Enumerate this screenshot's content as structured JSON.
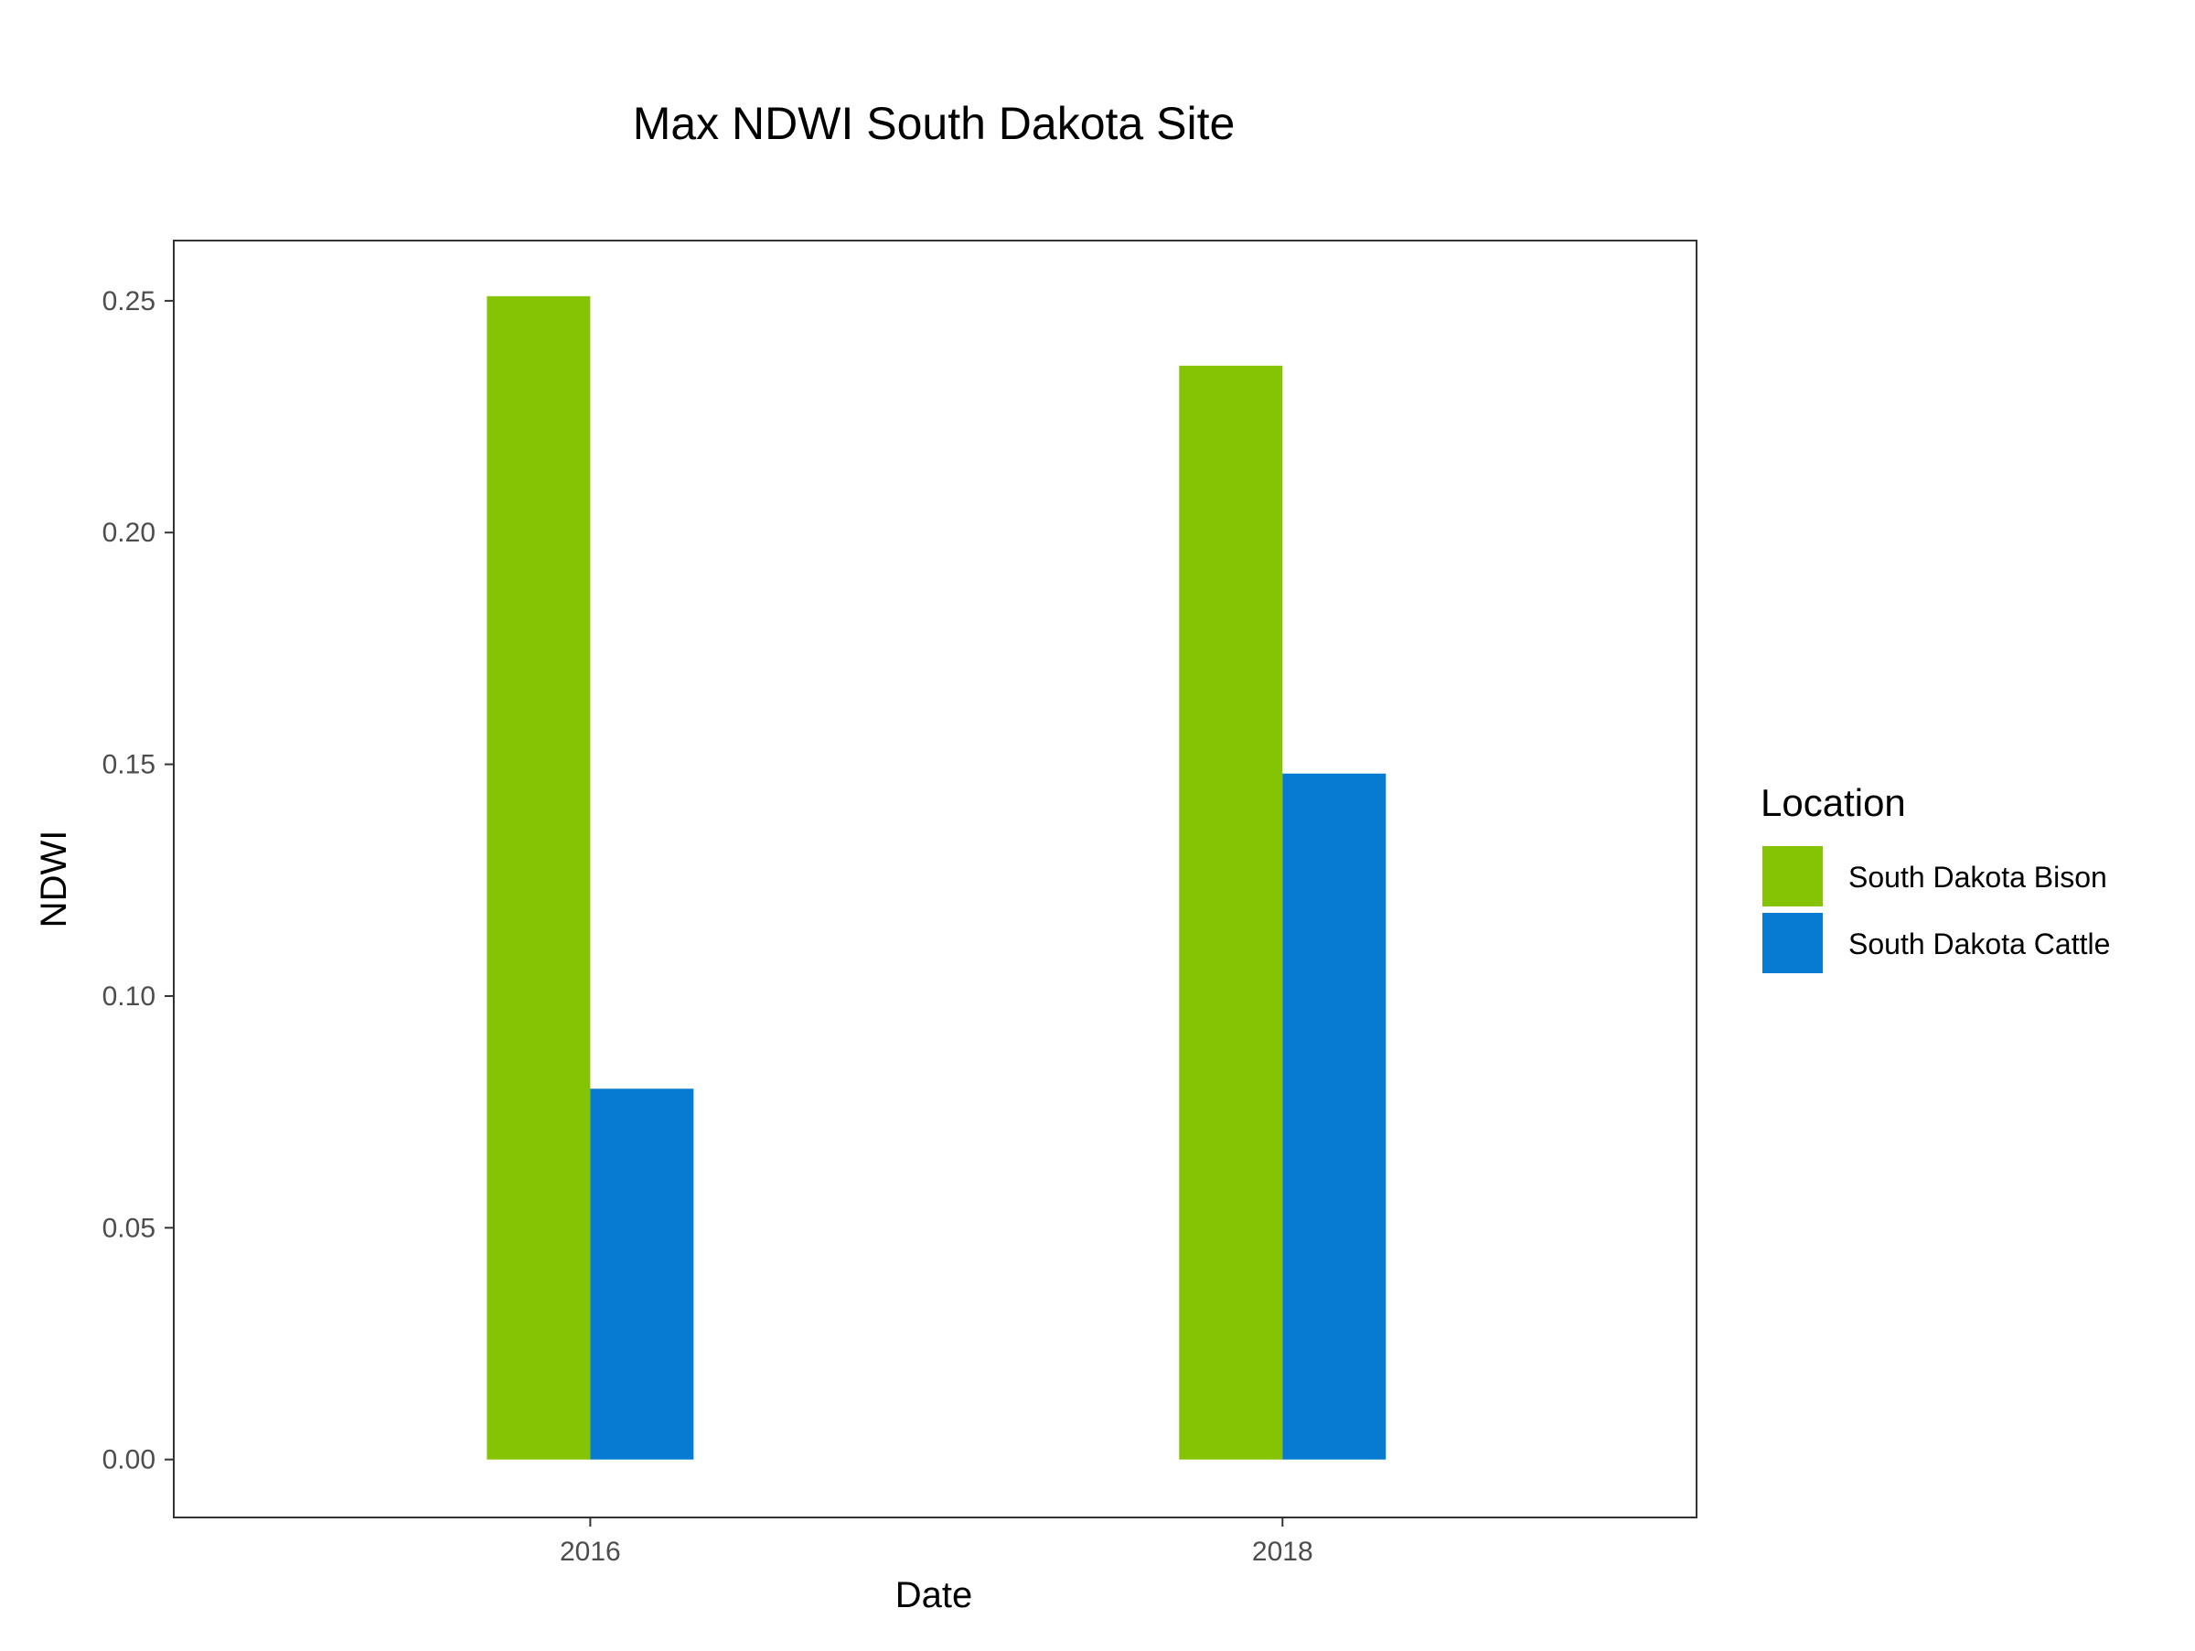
{
  "chart_data": {
    "type": "bar",
    "title": "Max NDWI South Dakota Site",
    "xlabel": "Date",
    "ylabel": "NDWI",
    "categories": [
      "2016",
      "2018"
    ],
    "series": [
      {
        "name": "South Dakota Bison",
        "color": "#85C305",
        "values": [
          0.251,
          0.236
        ]
      },
      {
        "name": "South Dakota Cattle",
        "color": "#077BD1",
        "values": [
          0.08,
          0.148
        ]
      }
    ],
    "ylim": [
      -0.0125,
      0.263
    ],
    "yticks": [
      0.0,
      0.05,
      0.1,
      0.15,
      0.2,
      0.25
    ],
    "ytick_labels": [
      "0.00",
      "0.05",
      "0.10",
      "0.15",
      "0.20",
      "0.25"
    ],
    "grid": false,
    "legend": {
      "title": "Location",
      "placement": "right"
    }
  }
}
